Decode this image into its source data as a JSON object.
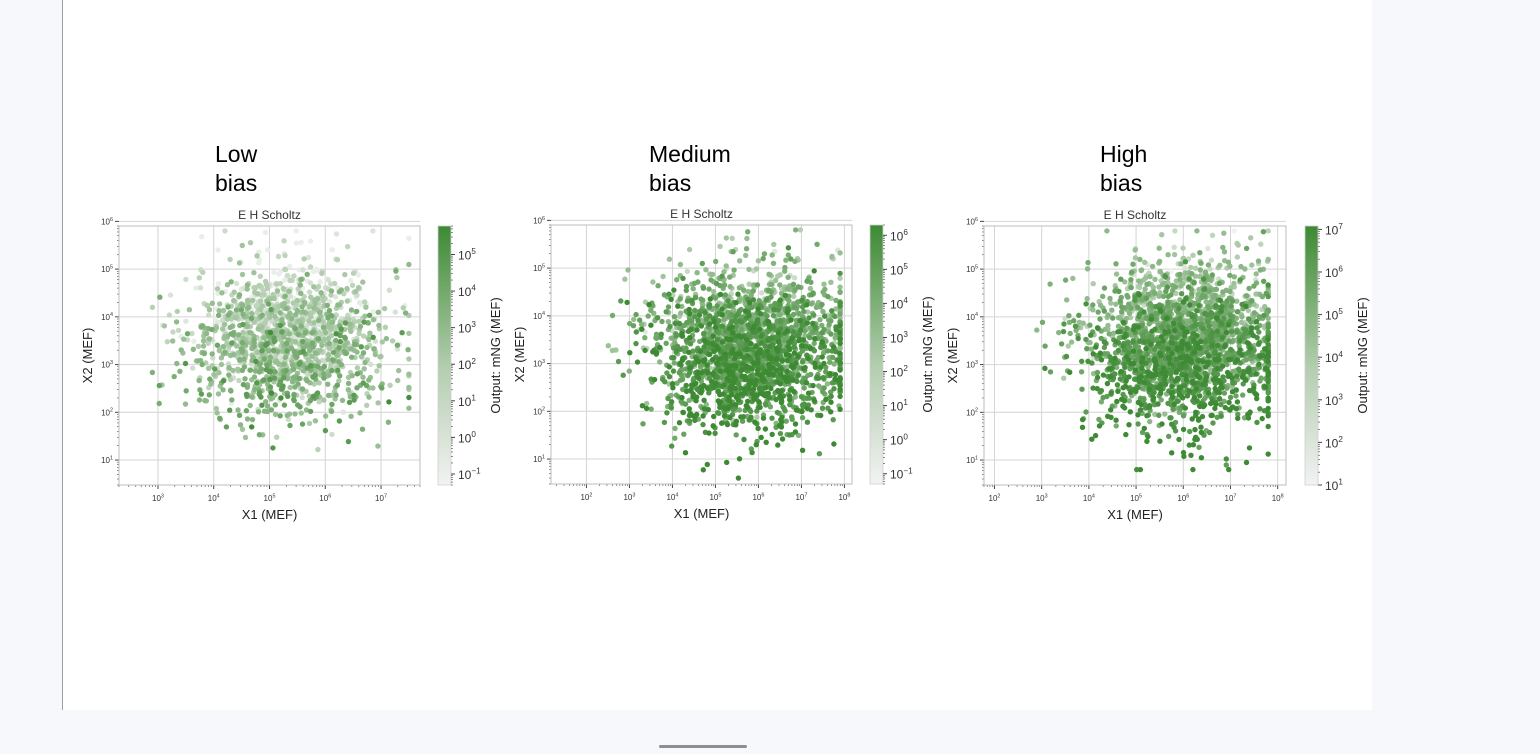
{
  "colors": {
    "low": "#f2f2f2",
    "high": "#3d8a33",
    "grid": "#d4d4d4",
    "axis": "#444444"
  },
  "chart_data": [
    {
      "type": "scatter",
      "panel_label": "Low\nbias",
      "title": "E H Scholtz",
      "xlabel": "X1 (MEF)",
      "ylabel": "X2 (MEF)",
      "x_scale": "log",
      "y_scale": "log",
      "x_tick_exponents": [
        3,
        4,
        5,
        6,
        7
      ],
      "y_tick_exponents": [
        1,
        2,
        3,
        4,
        5,
        6
      ],
      "xlim": [
        200,
        50000000
      ],
      "ylim": [
        3,
        800000
      ],
      "colorbar": {
        "label": "Output: mNG (MEF)",
        "scale": "log",
        "range": [
          0.05,
          600000
        ],
        "tick_exponents": [
          -1,
          0,
          1,
          2,
          3,
          4,
          5
        ]
      },
      "point_cloud": {
        "n": 1500,
        "x_log_mean": 5.3,
        "x_log_sd": 0.85,
        "y_log_mean": 3.5,
        "y_log_sd": 0.75,
        "x_log_min": 2.9,
        "x_log_max": 7.5,
        "y_log_min": 0.7,
        "y_log_max": 5.8,
        "c_log_min": -1,
        "c_log_max": 5.5,
        "c_log_mean": 1.5,
        "c_log_sd": 1.4,
        "seed": 11
      }
    },
    {
      "type": "scatter",
      "panel_label": "Medium\nbias",
      "title": "E H Scholtz",
      "xlabel": "X1 (MEF)",
      "ylabel": "X2 (MEF)",
      "x_scale": "log",
      "y_scale": "log",
      "x_tick_exponents": [
        2,
        3,
        4,
        5,
        6,
        7,
        8
      ],
      "y_tick_exponents": [
        1,
        2,
        3,
        4,
        5,
        6
      ],
      "xlim": [
        15,
        150000000
      ],
      "ylim": [
        3,
        800000
      ],
      "colorbar": {
        "label": "Output: mNG (MEF)",
        "scale": "log",
        "range": [
          0.05,
          2000000
        ],
        "tick_exponents": [
          -1,
          0,
          1,
          2,
          3,
          4,
          5,
          6
        ]
      },
      "point_cloud": {
        "n": 2200,
        "x_log_mean": 5.8,
        "x_log_sd": 1.1,
        "y_log_mean": 3.3,
        "y_log_sd": 0.8,
        "x_log_min": 1.6,
        "x_log_max": 7.9,
        "y_log_min": 0.6,
        "y_log_max": 5.8,
        "c_log_min": -1,
        "c_log_max": 6.3,
        "c_log_mean": 4.5,
        "c_log_sd": 1.5,
        "seed": 23
      }
    },
    {
      "type": "scatter",
      "panel_label": "High\nbias",
      "title": "E H Scholtz",
      "xlabel": "X1 (MEF)",
      "ylabel": "X2 (MEF)",
      "x_scale": "log",
      "y_scale": "log",
      "x_tick_exponents": [
        2,
        3,
        4,
        5,
        6,
        7,
        8
      ],
      "y_tick_exponents": [
        1,
        2,
        3,
        4,
        5,
        6
      ],
      "xlim": [
        60,
        150000000
      ],
      "ylim": [
        3,
        800000
      ],
      "colorbar": {
        "label": "Output: mNG (MEF)",
        "scale": "log",
        "range": [
          10,
          12000000
        ],
        "tick_exponents": [
          1,
          2,
          3,
          4,
          5,
          6,
          7
        ]
      },
      "point_cloud": {
        "n": 2200,
        "x_log_mean": 6.0,
        "x_log_sd": 1.0,
        "y_log_mean": 3.4,
        "y_log_sd": 0.8,
        "x_log_min": 2.4,
        "x_log_max": 7.8,
        "y_log_min": 0.8,
        "y_log_max": 5.8,
        "c_log_min": 1,
        "c_log_max": 7,
        "c_log_mean": 5.4,
        "c_log_sd": 1.1,
        "seed": 37
      }
    }
  ]
}
